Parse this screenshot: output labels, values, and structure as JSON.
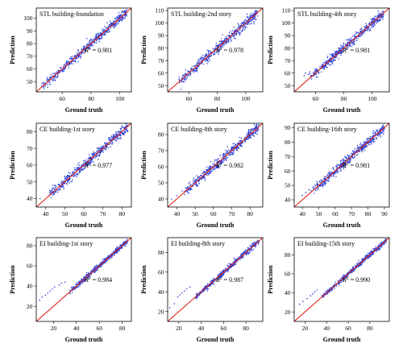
{
  "colors": {
    "point": "#2b3fd6",
    "identity_line": "#e0281e"
  },
  "chart_data": [
    {
      "type": "scatter",
      "title": "STL building-foundation",
      "xlabel": "Ground truth",
      "ylabel": "Prediction",
      "r2_prefix": "R",
      "r2_sup": "2",
      "r2_value": " = 0.981",
      "xlim": [
        42,
        108
      ],
      "ylim": [
        42,
        108
      ],
      "xticks": [
        60,
        80,
        100
      ],
      "yticks": [
        50,
        60,
        70,
        80,
        90,
        100
      ],
      "points_range": [
        46,
        105
      ],
      "spread": 1.8,
      "outliers": [
        [
          50,
          50.5
        ],
        [
          52,
          53
        ],
        [
          55,
          54
        ]
      ]
    },
    {
      "type": "scatter",
      "title": "STL building-2nd story",
      "xlabel": "Ground truth",
      "ylabel": "Prediction",
      "r2_prefix": "R",
      "r2_sup": "2",
      "r2_value": " = 0.978",
      "xlim": [
        45,
        112
      ],
      "ylim": [
        45,
        112
      ],
      "xticks": [
        60,
        80,
        100
      ],
      "yticks": [
        50,
        60,
        70,
        80,
        90,
        100,
        110
      ],
      "points_range": [
        53,
        108
      ],
      "spread": 2.0,
      "outliers": [
        [
          53,
          55
        ],
        [
          55,
          56
        ]
      ]
    },
    {
      "type": "scatter",
      "title": "STL building-4th story",
      "xlabel": "Ground truth",
      "ylabel": "Prediction",
      "r2_prefix": "R",
      "r2_sup": "2",
      "r2_value": " = 0.981",
      "xlim": [
        45,
        112
      ],
      "ylim": [
        45,
        112
      ],
      "xticks": [
        60,
        80,
        100
      ],
      "yticks": [
        50,
        60,
        70,
        80,
        90,
        100,
        110
      ],
      "points_range": [
        56,
        108
      ],
      "spread": 1.8,
      "outliers": [
        [
          52,
          58
        ],
        [
          53,
          60
        ],
        [
          55,
          59
        ],
        [
          56,
          61
        ]
      ]
    },
    {
      "type": "scatter",
      "title": "CE building-1st story",
      "xlabel": "Ground truth",
      "ylabel": "Prediction",
      "r2_prefix": "R",
      "r2_sup": "2",
      "r2_value": " = 0.977",
      "xlim": [
        35,
        85
      ],
      "ylim": [
        35,
        85
      ],
      "xticks": [
        40,
        50,
        60,
        70,
        80
      ],
      "yticks": [
        40,
        50,
        60,
        70,
        80
      ],
      "points_range": [
        42,
        83
      ],
      "spread": 1.5,
      "outliers": [
        [
          37,
          40
        ],
        [
          44,
          46
        ],
        [
          45,
          48
        ]
      ]
    },
    {
      "type": "scatter",
      "title": "CE building-8th story",
      "xlabel": "Ground truth",
      "ylabel": "Prediction",
      "r2_prefix": "R",
      "r2_sup": "2",
      "r2_value": " = 0.982",
      "xlim": [
        35,
        87
      ],
      "ylim": [
        35,
        87
      ],
      "xticks": [
        40,
        50,
        60,
        70,
        80
      ],
      "yticks": [
        40,
        50,
        60,
        70,
        80
      ],
      "points_range": [
        44,
        85
      ],
      "spread": 1.4,
      "outliers": [
        [
          37,
          40
        ],
        [
          40,
          42
        ],
        [
          43,
          45
        ]
      ]
    },
    {
      "type": "scatter",
      "title": "CE building-16th story",
      "xlabel": "Ground truth",
      "ylabel": "Prediction",
      "r2_prefix": "R",
      "r2_sup": "2",
      "r2_value": " = 0.981",
      "xlim": [
        35,
        93
      ],
      "ylim": [
        35,
        93
      ],
      "xticks": [
        40,
        50,
        60,
        70,
        80,
        90
      ],
      "yticks": [
        40,
        50,
        60,
        70,
        80,
        90
      ],
      "points_range": [
        46,
        90
      ],
      "spread": 1.5,
      "outliers": [
        [
          40,
          43
        ],
        [
          42,
          45
        ],
        [
          44,
          47
        ]
      ]
    },
    {
      "type": "scatter",
      "title": "EI building-1st story",
      "xlabel": "Ground truth",
      "ylabel": "Prediction",
      "r2_prefix": "R",
      "r2_sup": "2",
      "r2_value": " = 0.984",
      "xlim": [
        5,
        88
      ],
      "ylim": [
        5,
        88
      ],
      "xticks": [
        20,
        40,
        60,
        80
      ],
      "yticks": [
        20,
        40,
        60,
        80
      ],
      "points_range": [
        34,
        85
      ],
      "spread": 1.3,
      "outliers": [
        [
          8,
          26
        ],
        [
          10,
          29
        ],
        [
          13,
          31
        ],
        [
          15,
          33
        ],
        [
          17,
          35
        ],
        [
          19,
          37
        ],
        [
          21,
          39
        ],
        [
          25,
          41
        ],
        [
          27,
          43
        ],
        [
          30,
          44
        ]
      ]
    },
    {
      "type": "scatter",
      "title": "EI building-8th story",
      "xlabel": "Ground truth",
      "ylabel": "Prediction",
      "r2_prefix": "R",
      "r2_sup": "2",
      "r2_value": " = 0.987",
      "xlim": [
        10,
        95
      ],
      "ylim": [
        10,
        95
      ],
      "xticks": [
        20,
        40,
        60,
        80
      ],
      "yticks": [
        20,
        40,
        60,
        80
      ],
      "points_range": [
        34,
        92
      ],
      "spread": 1.3,
      "outliers": [
        [
          12,
          24
        ],
        [
          16,
          28
        ],
        [
          19,
          35
        ],
        [
          21,
          37
        ],
        [
          23,
          39
        ],
        [
          25,
          41
        ],
        [
          27,
          43
        ],
        [
          30,
          45
        ]
      ]
    },
    {
      "type": "scatter",
      "title": "EI building-15th story",
      "xlabel": "Ground truth",
      "ylabel": "Prediction",
      "r2_prefix": "R",
      "r2_sup": "2",
      "r2_value": " = 0.990",
      "xlim": [
        10,
        98
      ],
      "ylim": [
        10,
        98
      ],
      "xticks": [
        20,
        40,
        60,
        80
      ],
      "yticks": [
        20,
        40,
        60,
        80
      ],
      "points_range": [
        36,
        95
      ],
      "spread": 1.2,
      "outliers": [
        [
          15,
          28
        ],
        [
          18,
          31
        ],
        [
          22,
          34
        ],
        [
          25,
          37
        ],
        [
          27,
          39
        ],
        [
          29,
          41
        ],
        [
          31,
          43
        ]
      ]
    }
  ]
}
